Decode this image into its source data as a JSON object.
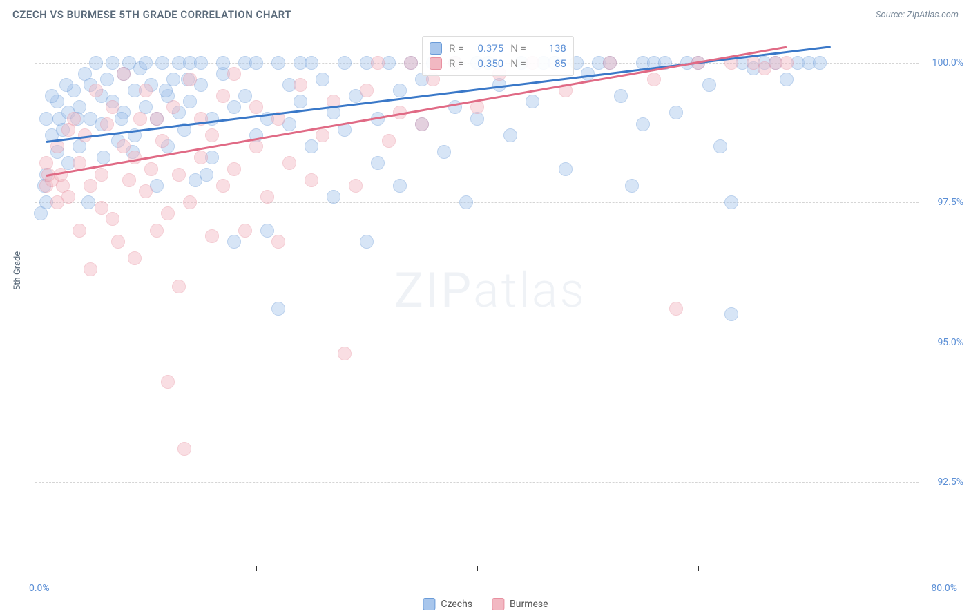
{
  "title": "CZECH VS BURMESE 5TH GRADE CORRELATION CHART",
  "source": "Source: ZipAtlas.com",
  "watermark_zip": "ZIP",
  "watermark_atlas": "atlas",
  "chart": {
    "type": "scatter",
    "y_axis_title": "5th Grade",
    "xlim": [
      0,
      80
    ],
    "ylim": [
      91,
      100.5
    ],
    "x_ticks": [
      10,
      20,
      30,
      40,
      50,
      60,
      70
    ],
    "y_gridlines": [
      92.5,
      95.0,
      97.5,
      100.0
    ],
    "y_tick_labels": [
      "92.5%",
      "95.0%",
      "97.5%",
      "100.0%"
    ],
    "x_label_min": "0.0%",
    "x_label_max": "80.0%",
    "background_color": "#ffffff",
    "grid_color": "#d5d5d5",
    "axis_color": "#333333",
    "label_color": "#5b8fd6",
    "label_fontsize": 14,
    "title_color": "#5a6a7a",
    "title_fontsize": 15,
    "marker_radius": 10,
    "marker_opacity": 0.45,
    "line_width": 2.5,
    "series": [
      {
        "name": "Czechs",
        "key": "czechs",
        "color_fill": "#a8c6ec",
        "color_stroke": "#6a9bd8",
        "line_color": "#3a78c8",
        "R": "0.375",
        "N": "138",
        "trend": {
          "x1": 1,
          "y1": 98.6,
          "x2": 72,
          "y2": 100.3
        },
        "points": [
          [
            1,
            97.5
          ],
          [
            1,
            98.0
          ],
          [
            1,
            99.0
          ],
          [
            1.5,
            98.7
          ],
          [
            2,
            98.4
          ],
          [
            2,
            99.3
          ],
          [
            2.2,
            99.0
          ],
          [
            2.5,
            98.8
          ],
          [
            3,
            99.1
          ],
          [
            3,
            98.2
          ],
          [
            3.5,
            99.5
          ],
          [
            4,
            99.2
          ],
          [
            4,
            98.5
          ],
          [
            4.5,
            99.8
          ],
          [
            5,
            99.6
          ],
          [
            5,
            99.0
          ],
          [
            5.5,
            100.0
          ],
          [
            6,
            99.4
          ],
          [
            6,
            98.9
          ],
          [
            6.5,
            99.7
          ],
          [
            7,
            100.0
          ],
          [
            7,
            99.3
          ],
          [
            7.5,
            98.6
          ],
          [
            8,
            99.8
          ],
          [
            8,
            99.1
          ],
          [
            8.5,
            100.0
          ],
          [
            9,
            99.5
          ],
          [
            9,
            98.7
          ],
          [
            9.5,
            99.9
          ],
          [
            10,
            99.2
          ],
          [
            10,
            100.0
          ],
          [
            10.5,
            99.6
          ],
          [
            11,
            99.0
          ],
          [
            11,
            97.8
          ],
          [
            11.5,
            100.0
          ],
          [
            12,
            99.4
          ],
          [
            12,
            98.5
          ],
          [
            12.5,
            99.7
          ],
          [
            13,
            100.0
          ],
          [
            13,
            99.1
          ],
          [
            13.5,
            98.8
          ],
          [
            14,
            100.0
          ],
          [
            14,
            99.3
          ],
          [
            14.5,
            97.9
          ],
          [
            15,
            99.6
          ],
          [
            15,
            100.0
          ],
          [
            16,
            99.0
          ],
          [
            16,
            98.3
          ],
          [
            17,
            99.8
          ],
          [
            17,
            100.0
          ],
          [
            18,
            99.2
          ],
          [
            18,
            96.8
          ],
          [
            19,
            100.0
          ],
          [
            19,
            99.4
          ],
          [
            20,
            98.7
          ],
          [
            20,
            100.0
          ],
          [
            21,
            99.0
          ],
          [
            21,
            97.0
          ],
          [
            22,
            95.6
          ],
          [
            22,
            100.0
          ],
          [
            23,
            99.6
          ],
          [
            23,
            98.9
          ],
          [
            24,
            100.0
          ],
          [
            24,
            99.3
          ],
          [
            25,
            98.5
          ],
          [
            25,
            100.0
          ],
          [
            26,
            99.7
          ],
          [
            27,
            97.6
          ],
          [
            27,
            99.1
          ],
          [
            28,
            100.0
          ],
          [
            28,
            98.8
          ],
          [
            29,
            99.4
          ],
          [
            30,
            100.0
          ],
          [
            30,
            96.8
          ],
          [
            31,
            99.0
          ],
          [
            31,
            98.2
          ],
          [
            32,
            100.0
          ],
          [
            33,
            99.5
          ],
          [
            33,
            97.8
          ],
          [
            34,
            100.0
          ],
          [
            35,
            98.9
          ],
          [
            35,
            99.7
          ],
          [
            36,
            100.0
          ],
          [
            37,
            98.4
          ],
          [
            38,
            99.2
          ],
          [
            38,
            100.0
          ],
          [
            39,
            97.5
          ],
          [
            40,
            100.0
          ],
          [
            40,
            99.0
          ],
          [
            41,
            100.0
          ],
          [
            42,
            99.6
          ],
          [
            43,
            98.7
          ],
          [
            44,
            100.0
          ],
          [
            45,
            99.3
          ],
          [
            46,
            100.0
          ],
          [
            47,
            100.0
          ],
          [
            48,
            98.1
          ],
          [
            49,
            100.0
          ],
          [
            50,
            99.8
          ],
          [
            51,
            100.0
          ],
          [
            52,
            100.0
          ],
          [
            53,
            99.4
          ],
          [
            54,
            97.8
          ],
          [
            55,
            98.9
          ],
          [
            55,
            100.0
          ],
          [
            56,
            100.0
          ],
          [
            57,
            100.0
          ],
          [
            58,
            99.1
          ],
          [
            59,
            100.0
          ],
          [
            60,
            100.0
          ],
          [
            61,
            99.6
          ],
          [
            62,
            98.5
          ],
          [
            63,
            97.5
          ],
          [
            63,
            95.5
          ],
          [
            64,
            100.0
          ],
          [
            65,
            99.9
          ],
          [
            66,
            100.0
          ],
          [
            67,
            100.0
          ],
          [
            68,
            99.7
          ],
          [
            69,
            100.0
          ],
          [
            70,
            100.0
          ],
          [
            71,
            100.0
          ],
          [
            1.5,
            99.4
          ],
          [
            2.8,
            99.6
          ],
          [
            3.8,
            99.0
          ],
          [
            4.8,
            97.5
          ],
          [
            6.2,
            98.3
          ],
          [
            7.8,
            99.0
          ],
          [
            8.8,
            98.4
          ],
          [
            11.8,
            99.5
          ],
          [
            13.8,
            99.7
          ],
          [
            15.5,
            98.0
          ],
          [
            0.5,
            97.3
          ],
          [
            0.8,
            97.8
          ]
        ]
      },
      {
        "name": "Burmese",
        "key": "burmese",
        "color_fill": "#f2b8c2",
        "color_stroke": "#e890a0",
        "line_color": "#e06a85",
        "R": "0.350",
        "N": "85",
        "trend": {
          "x1": 1,
          "y1": 98.0,
          "x2": 68,
          "y2": 100.3
        },
        "points": [
          [
            1,
            97.8
          ],
          [
            1,
            98.2
          ],
          [
            1.5,
            97.9
          ],
          [
            2,
            98.5
          ],
          [
            2,
            97.5
          ],
          [
            2.5,
            97.8
          ],
          [
            3,
            98.8
          ],
          [
            3,
            97.6
          ],
          [
            3.5,
            99.0
          ],
          [
            4,
            98.2
          ],
          [
            4,
            97.0
          ],
          [
            4.5,
            98.7
          ],
          [
            5,
            97.8
          ],
          [
            5,
            96.3
          ],
          [
            5.5,
            99.5
          ],
          [
            6,
            98.0
          ],
          [
            6,
            97.4
          ],
          [
            6.5,
            98.9
          ],
          [
            7,
            97.2
          ],
          [
            7,
            99.2
          ],
          [
            7.5,
            96.8
          ],
          [
            8,
            98.5
          ],
          [
            8,
            99.8
          ],
          [
            8.5,
            97.9
          ],
          [
            9,
            98.3
          ],
          [
            9,
            96.5
          ],
          [
            9.5,
            99.0
          ],
          [
            10,
            97.7
          ],
          [
            10,
            99.5
          ],
          [
            10.5,
            98.1
          ],
          [
            11,
            97.0
          ],
          [
            11,
            99.0
          ],
          [
            11.5,
            98.6
          ],
          [
            12,
            97.3
          ],
          [
            12,
            94.3
          ],
          [
            12.5,
            99.2
          ],
          [
            13,
            96.0
          ],
          [
            13,
            98.0
          ],
          [
            13.5,
            93.1
          ],
          [
            14,
            99.7
          ],
          [
            14,
            97.5
          ],
          [
            15,
            98.3
          ],
          [
            15,
            99.0
          ],
          [
            16,
            96.9
          ],
          [
            16,
            98.7
          ],
          [
            17,
            99.4
          ],
          [
            17,
            97.8
          ],
          [
            18,
            98.1
          ],
          [
            18,
            99.8
          ],
          [
            19,
            97.0
          ],
          [
            20,
            98.5
          ],
          [
            20,
            99.2
          ],
          [
            21,
            97.6
          ],
          [
            22,
            96.8
          ],
          [
            22,
            99.0
          ],
          [
            23,
            98.2
          ],
          [
            24,
            99.6
          ],
          [
            25,
            97.9
          ],
          [
            26,
            98.7
          ],
          [
            27,
            99.3
          ],
          [
            28,
            94.8
          ],
          [
            29,
            97.8
          ],
          [
            30,
            99.5
          ],
          [
            31,
            100.0
          ],
          [
            32,
            98.6
          ],
          [
            33,
            99.1
          ],
          [
            34,
            100.0
          ],
          [
            35,
            98.9
          ],
          [
            36,
            99.7
          ],
          [
            38,
            100.0
          ],
          [
            40,
            99.2
          ],
          [
            42,
            99.8
          ],
          [
            45,
            100.0
          ],
          [
            48,
            99.5
          ],
          [
            52,
            100.0
          ],
          [
            56,
            99.7
          ],
          [
            58,
            95.6
          ],
          [
            60,
            100.0
          ],
          [
            63,
            100.0
          ],
          [
            65,
            100.0
          ],
          [
            66,
            99.9
          ],
          [
            67,
            100.0
          ],
          [
            68,
            100.0
          ],
          [
            1.2,
            98.0
          ],
          [
            2.3,
            98.0
          ]
        ]
      }
    ],
    "legend_bottom": [
      {
        "key": "czechs",
        "label": "Czechs"
      },
      {
        "key": "burmese",
        "label": "Burmese"
      }
    ],
    "legend_top_labels": {
      "R": "R =",
      "N": "N ="
    }
  }
}
